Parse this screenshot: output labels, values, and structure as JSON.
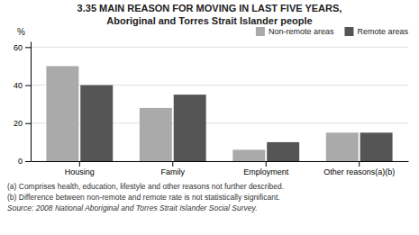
{
  "chart_data": {
    "type": "bar",
    "title": "3.35   MAIN REASON FOR MOVING IN LAST FIVE YEARS,",
    "subtitle": "Aboriginal and Torres Strait Islander people",
    "ylabel": "%",
    "categories": [
      "Housing",
      "Family",
      "Employment",
      "Other reasons(a)(b)"
    ],
    "series": [
      {
        "name": "Non-remote areas",
        "color": "#aaaaaa",
        "values": [
          50,
          28,
          6,
          15
        ]
      },
      {
        "name": "Remote areas",
        "color": "#555555",
        "values": [
          40,
          35,
          10,
          15
        ]
      }
    ],
    "ylim": [
      0,
      63
    ],
    "yticks": [
      0,
      20,
      40,
      60
    ],
    "grid": true,
    "legend": "upper right",
    "annotations": [
      "(a) Comprises health, education, lifestyle and other reasons not further described.",
      "(b) Difference between non-remote and remote rate is not statistically significant.",
      "Source: 2008 National Aboriginal and Torres Strait Islander Social Survey."
    ]
  }
}
